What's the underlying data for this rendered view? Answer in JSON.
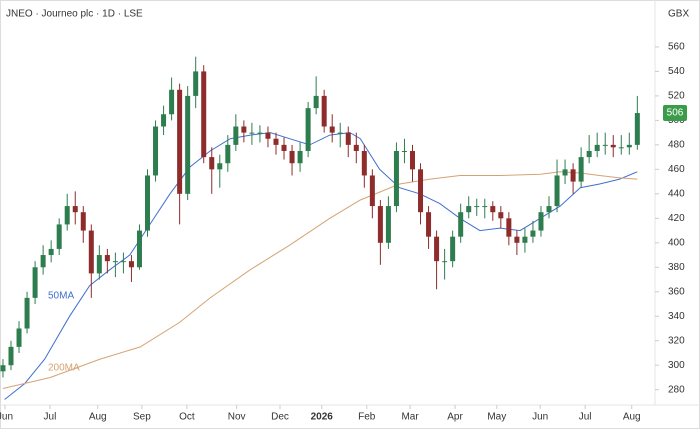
{
  "chart_data": {
    "type": "candlestick",
    "title": "JNEO · Journeo plc · 1D · LSE",
    "currency": "GBX",
    "x": [
      0,
      1,
      2,
      3,
      4,
      5,
      6,
      7,
      8,
      9,
      10,
      11,
      12,
      13,
      14,
      15,
      16,
      17,
      18,
      19,
      20,
      21,
      22,
      23,
      24,
      25,
      26,
      27,
      28,
      29,
      30,
      31,
      32,
      33,
      34,
      35,
      36,
      37,
      38,
      39,
      40,
      41,
      42,
      43,
      44,
      45,
      46,
      47,
      48,
      49,
      50,
      51,
      52,
      53,
      54,
      55,
      56,
      57,
      58,
      59,
      60,
      61,
      62,
      63,
      64,
      65,
      66,
      67,
      68,
      69,
      70,
      71,
      72,
      73,
      74,
      75,
      76,
      77,
      78,
      79
    ],
    "open": [
      295,
      300,
      315,
      330,
      355,
      380,
      390,
      395,
      415,
      430,
      425,
      410,
      375,
      390,
      385,
      385,
      385,
      380,
      410,
      455,
      495,
      505,
      525,
      440,
      520,
      540,
      470,
      460,
      465,
      480,
      495,
      490,
      490,
      490,
      485,
      480,
      475,
      465,
      475,
      510,
      520,
      495,
      490,
      490,
      480,
      475,
      455,
      430,
      400,
      430,
      475,
      475,
      460,
      425,
      405,
      385,
      385,
      405,
      425,
      430,
      430,
      430,
      425,
      420,
      405,
      400,
      405,
      410,
      425,
      430,
      455,
      460,
      450,
      470,
      475,
      480,
      480,
      478,
      478,
      480
    ],
    "high": [
      305,
      320,
      336,
      360,
      385,
      398,
      402,
      420,
      440,
      442,
      430,
      415,
      398,
      395,
      392,
      392,
      390,
      415,
      460,
      500,
      512,
      535,
      530,
      528,
      552,
      545,
      478,
      472,
      488,
      505,
      500,
      498,
      496,
      495,
      490,
      486,
      480,
      482,
      515,
      536,
      525,
      505,
      498,
      495,
      490,
      480,
      460,
      435,
      438,
      482,
      485,
      480,
      465,
      430,
      410,
      395,
      410,
      432,
      438,
      436,
      436,
      434,
      430,
      425,
      410,
      412,
      418,
      430,
      438,
      468,
      468,
      465,
      478,
      488,
      490,
      490,
      488,
      488,
      490,
      520
    ],
    "low": [
      290,
      296,
      310,
      326,
      350,
      374,
      384,
      390,
      410,
      415,
      400,
      355,
      370,
      375,
      372,
      375,
      368,
      378,
      405,
      450,
      488,
      500,
      415,
      435,
      510,
      465,
      440,
      445,
      458,
      475,
      482,
      480,
      482,
      478,
      472,
      468,
      455,
      458,
      470,
      505,
      490,
      482,
      478,
      470,
      465,
      445,
      420,
      382,
      395,
      425,
      465,
      450,
      415,
      395,
      362,
      370,
      380,
      400,
      420,
      422,
      420,
      418,
      412,
      398,
      390,
      392,
      400,
      405,
      420,
      425,
      448,
      440,
      445,
      465,
      470,
      472,
      470,
      472,
      472,
      476
    ],
    "close": [
      300,
      315,
      330,
      355,
      380,
      390,
      395,
      415,
      430,
      425,
      410,
      375,
      390,
      385,
      385,
      385,
      380,
      410,
      455,
      495,
      505,
      525,
      440,
      520,
      540,
      470,
      460,
      465,
      480,
      495,
      490,
      490,
      490,
      485,
      480,
      475,
      465,
      475,
      510,
      520,
      495,
      490,
      490,
      480,
      475,
      455,
      430,
      400,
      430,
      475,
      475,
      460,
      425,
      405,
      385,
      385,
      405,
      425,
      430,
      430,
      430,
      425,
      420,
      405,
      400,
      405,
      410,
      425,
      430,
      455,
      460,
      450,
      470,
      475,
      480,
      480,
      478,
      478,
      480,
      506
    ],
    "up_color": "#2e7d4f",
    "down_color": "#8e2b2b",
    "series": [
      {
        "name": "50MA",
        "color": "#3f6fd1",
        "x": [
          0.2,
          2.7,
          5.2,
          8.3,
          10.8,
          13.3,
          15.8,
          18.3,
          20.8,
          23.3,
          25.8,
          28.3,
          30.8,
          33.3,
          35.7,
          38.2,
          40.7,
          43.2,
          44.5,
          46.9,
          49.4,
          51.9,
          54.4,
          56.9,
          59.4,
          61.9,
          64.4,
          66.9,
          69.4,
          71.9,
          74.3,
          76.8,
          79
        ],
        "values": [
          272,
          285,
          305,
          340,
          365,
          378,
          390,
          415,
          440,
          462,
          475,
          485,
          488,
          490,
          485,
          480,
          488,
          490,
          485,
          460,
          445,
          440,
          432,
          420,
          410,
          412,
          410,
          420,
          430,
          445,
          448,
          452,
          458
        ]
      },
      {
        "name": "200MA",
        "color": "#d4a373",
        "x": [
          0,
          5.9,
          12.1,
          17.1,
          22,
          25.8,
          30.8,
          35.7,
          40.7,
          44.5,
          49.4,
          53.2,
          56.9,
          61.9,
          66.9,
          69.4,
          71.9,
          74.3,
          76.8,
          79
        ],
        "values": [
          281,
          290,
          305,
          315,
          335,
          355,
          378,
          398,
          420,
          435,
          448,
          452,
          455,
          455,
          456,
          458,
          457,
          455,
          453,
          452
        ]
      }
    ],
    "xlim": [
      -0.37,
      81.2
    ],
    "ylim": [
      267.5,
      582
    ],
    "yticks": [
      280,
      300,
      320,
      340,
      360,
      380,
      400,
      420,
      440,
      460,
      480,
      500,
      520,
      540,
      560
    ],
    "xticks": [
      {
        "value": 0.25,
        "label": "Jun"
      },
      {
        "value": 5.85,
        "label": "Jul"
      },
      {
        "value": 11.8,
        "label": "Aug"
      },
      {
        "value": 17.3,
        "label": "Sep"
      },
      {
        "value": 22.9,
        "label": "Oct"
      },
      {
        "value": 29.1,
        "label": "Nov"
      },
      {
        "value": 34.5,
        "label": "Dec"
      },
      {
        "value": 39.7,
        "label": "2026"
      },
      {
        "value": 45.3,
        "label": "Feb"
      },
      {
        "value": 50.7,
        "label": "Mar"
      },
      {
        "value": 56.3,
        "label": "Apr"
      },
      {
        "value": 61.5,
        "label": "May"
      },
      {
        "value": 66.9,
        "label": "Jun"
      },
      {
        "value": 72.5,
        "label": "Jul"
      },
      {
        "value": 78.3,
        "label": "Aug"
      }
    ]
  }
}
